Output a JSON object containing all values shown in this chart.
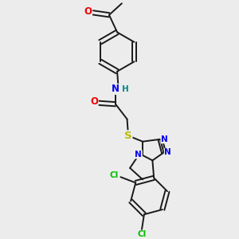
{
  "bg_color": "#ececec",
  "bond_color": "#1a1a1a",
  "bond_width": 1.4,
  "atom_colors": {
    "N": "#0000ee",
    "O": "#ee0000",
    "S": "#bbbb00",
    "Cl": "#00bb00",
    "H": "#008888",
    "C": "#1a1a1a"
  },
  "font_size": 7.5,
  "fig_size": [
    3.0,
    3.0
  ],
  "dpi": 100
}
